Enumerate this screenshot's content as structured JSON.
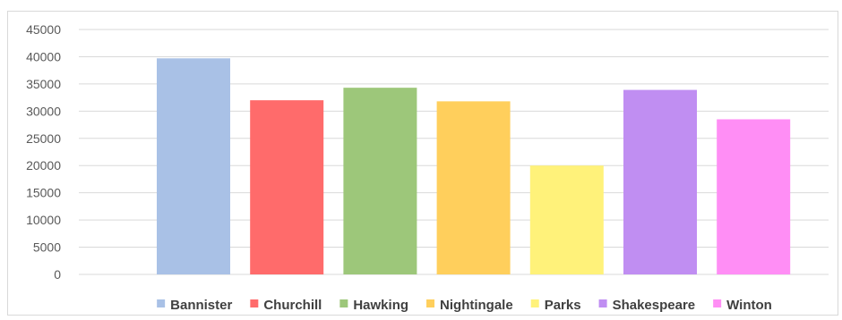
{
  "chart_data": {
    "type": "bar",
    "title": "",
    "xlabel": "",
    "ylabel": "",
    "categories": [
      "Bannister",
      "Churchill",
      "Hawking",
      "Nightingale",
      "Parks",
      "Shakespeare",
      "Winton"
    ],
    "values": [
      39700,
      32000,
      34300,
      31800,
      20000,
      33900,
      28500
    ],
    "colors": [
      "#a9c1e6",
      "#ff6b6b",
      "#9dc77a",
      "#ffcf5c",
      "#fff27a",
      "#c08ef2",
      "#ff8ef5"
    ],
    "ylim": [
      0,
      45000
    ],
    "yticks": [
      0,
      5000,
      10000,
      15000,
      20000,
      25000,
      30000,
      35000,
      40000,
      45000
    ],
    "grid": true,
    "legend_position": "bottom"
  }
}
